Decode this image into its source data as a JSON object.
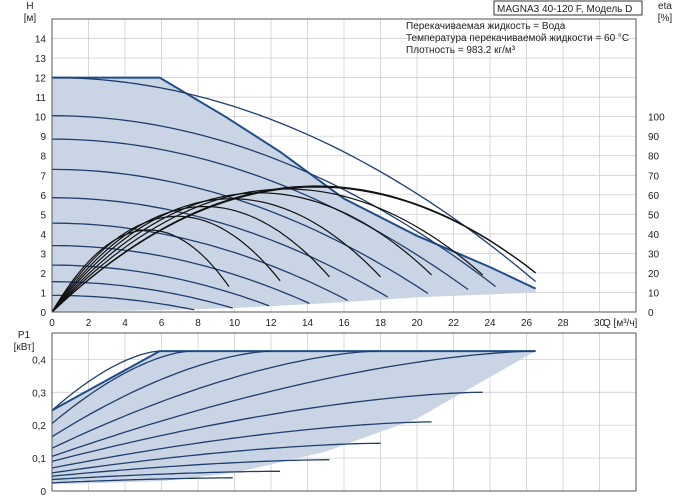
{
  "header": {
    "model": "MAGNA3 40-120 F, Модель D",
    "fluid": "Перекачиваемая жидкость = Вода",
    "temperature": "Температура перекачиваемой жидкости = 60 °C",
    "density": "Плотность = 983.2 кг/м³"
  },
  "colors": {
    "envelope_fill": "#c9d5e4",
    "envelope_edge": "#1f4e8a",
    "curve": "#1f3f6e",
    "eta": "#111111",
    "grid": "#c8c8c8"
  },
  "chart_data": [
    {
      "type": "line",
      "name": "head-efficiency",
      "xlabel": "Q [м³/ч]",
      "ylabel_top": "H",
      "ylabel_unit": "[м]",
      "y2label_top": "eta",
      "y2label_unit": "[%]",
      "xlim": [
        0,
        32
      ],
      "ylim": [
        0,
        15
      ],
      "y2lim": [
        0,
        150
      ],
      "x_ticks": [
        0,
        2,
        4,
        6,
        8,
        10,
        12,
        14,
        16,
        18,
        20,
        22,
        24,
        26,
        28,
        30
      ],
      "y_ticks": [
        0,
        1,
        2,
        3,
        4,
        5,
        6,
        7,
        8,
        9,
        10,
        11,
        12,
        13,
        14
      ],
      "y2_ticks": [
        0,
        10,
        20,
        30,
        40,
        50,
        60,
        70,
        80,
        90,
        100
      ],
      "grid": true,
      "envelope": {
        "max_curve": [
          [
            0,
            12.0
          ],
          [
            5.9,
            12.0
          ],
          [
            9.5,
            10.0
          ],
          [
            12.5,
            8.2
          ],
          [
            16,
            5.8
          ],
          [
            20,
            3.9
          ],
          [
            24,
            2.3
          ],
          [
            26.5,
            1.2
          ]
        ],
        "min_curve": [
          [
            26.5,
            1.0
          ],
          [
            20,
            0.75
          ],
          [
            15,
            0.45
          ],
          [
            10,
            0.2
          ],
          [
            6,
            0.1
          ],
          [
            3,
            0.05
          ],
          [
            0,
            0
          ]
        ]
      },
      "head_curves": [
        {
          "h0": 12.0,
          "qmax": 26.5
        },
        {
          "h0": 10.05,
          "qmax": 24.3
        },
        {
          "h0": 8.85,
          "qmax": 22.8
        },
        {
          "h0": 7.3,
          "qmax": 20.6
        },
        {
          "h0": 5.85,
          "qmax": 18.4
        },
        {
          "h0": 4.55,
          "qmax": 16.2
        },
        {
          "h0": 3.4,
          "qmax": 14.1
        },
        {
          "h0": 2.4,
          "qmax": 11.9
        },
        {
          "h0": 1.55,
          "qmax": 9.9
        },
        {
          "h0": 0.85,
          "qmax": 7.8
        }
      ],
      "eta_curves": [
        {
          "qend": 9.7,
          "peak": 42,
          "end": 13
        },
        {
          "qend": 12.5,
          "peak": 49,
          "end": 16
        },
        {
          "qend": 15.2,
          "peak": 54,
          "end": 18
        },
        {
          "qend": 18.0,
          "peak": 58,
          "end": 18
        },
        {
          "qend": 20.8,
          "peak": 61,
          "end": 19
        },
        {
          "qend": 23.6,
          "peak": 63,
          "end": 19
        },
        {
          "qend": 26.5,
          "peak": 64,
          "end": 20
        },
        {
          "qend": 26.5,
          "peak": 64.5,
          "end": 20
        }
      ]
    },
    {
      "type": "line",
      "name": "power",
      "ylabel_top": "P1",
      "ylabel_unit": "[кВт]",
      "xlim": [
        0,
        32
      ],
      "ylim": [
        0,
        0.48
      ],
      "y_ticks": [
        0,
        0.1,
        0.2,
        0.3,
        0.4
      ],
      "y_tick_labels": [
        "0",
        "0,1",
        "0,2",
        "0,3",
        "0,4"
      ],
      "grid": true,
      "envelope": {
        "upper": [
          [
            0,
            0.245
          ],
          [
            5.9,
            0.425
          ],
          [
            26.5,
            0.425
          ]
        ],
        "lower": [
          [
            26.5,
            0.425
          ],
          [
            20,
            0.22
          ],
          [
            15,
            0.12
          ],
          [
            10,
            0.055
          ],
          [
            6,
            0.03
          ],
          [
            0,
            0.02
          ]
        ]
      },
      "power_curves": [
        {
          "p0": 0.245,
          "qend": 5.9,
          "pend": 0.425
        },
        {
          "p0": 0.205,
          "qend": 7.6,
          "pend": 0.425
        },
        {
          "p0": 0.165,
          "qend": 12.0,
          "pend": 0.425
        },
        {
          "p0": 0.13,
          "qend": 17.9,
          "pend": 0.425
        },
        {
          "p0": 0.105,
          "qend": 26.5,
          "pend": 0.425
        },
        {
          "p0": 0.09,
          "qend": 23.6,
          "pend": 0.3
        },
        {
          "p0": 0.07,
          "qend": 20.8,
          "pend": 0.21
        },
        {
          "p0": 0.055,
          "qend": 18.0,
          "pend": 0.145
        },
        {
          "p0": 0.045,
          "qend": 15.2,
          "pend": 0.095
        },
        {
          "p0": 0.035,
          "qend": 12.5,
          "pend": 0.06
        },
        {
          "p0": 0.025,
          "qend": 9.9,
          "pend": 0.04
        }
      ]
    }
  ]
}
